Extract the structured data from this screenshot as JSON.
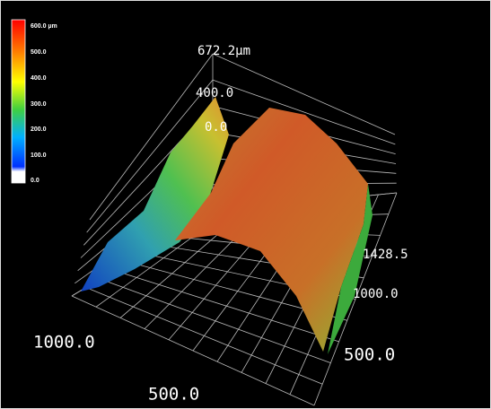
{
  "colorbar": {
    "labels": [
      "600.0 µm",
      "500.0",
      "400.0",
      "300.0",
      "200.0",
      "100.0",
      "0.0"
    ]
  },
  "z_axis": {
    "max_label": "672.2µm",
    "labels": [
      "400.0",
      "0.0"
    ]
  },
  "y_axis": {
    "labels": [
      "1428.5",
      "1000.0",
      "500.0"
    ]
  },
  "x_axis": {
    "labels": [
      "1000.0",
      "500.0"
    ]
  }
}
